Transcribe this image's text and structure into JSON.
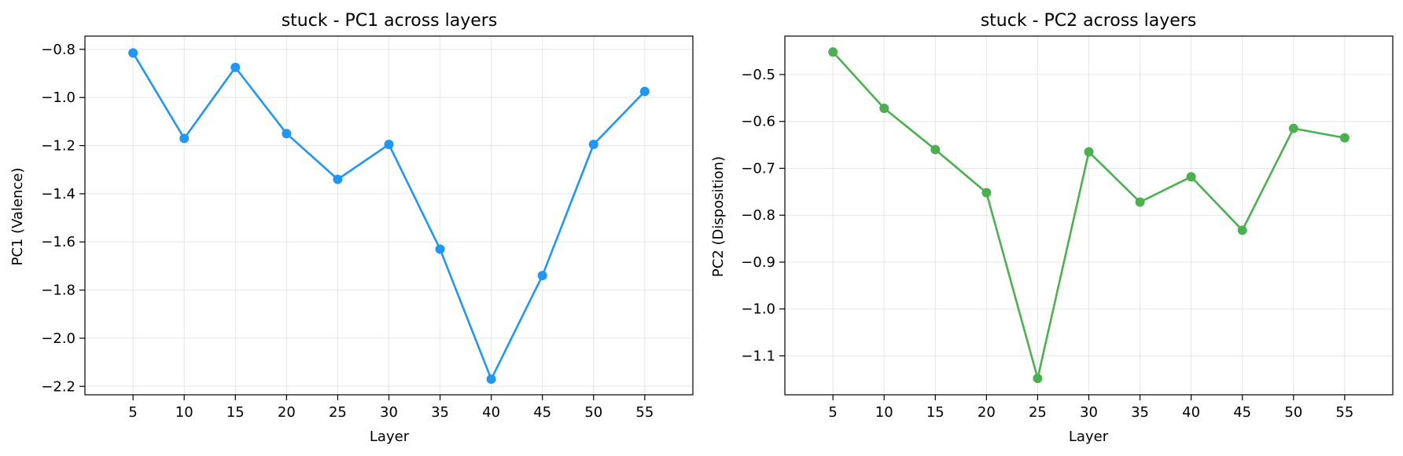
{
  "chart_data": [
    {
      "type": "line",
      "title": "stuck - PC1 across layers",
      "xlabel": "Layer",
      "ylabel": "PC1 (Valence)",
      "x": [
        5,
        10,
        15,
        20,
        25,
        30,
        35,
        40,
        45,
        50,
        55
      ],
      "xticks": [
        "5",
        "10",
        "15",
        "20",
        "25",
        "30",
        "35",
        "40",
        "45",
        "50",
        "55"
      ],
      "yticks": [
        -0.8,
        -1.0,
        -1.2,
        -1.4,
        -1.6,
        -1.8,
        -2.0,
        -2.2
      ],
      "ytick_labels": [
        "−0.8",
        "−1.0",
        "−1.2",
        "−1.4",
        "−1.6",
        "−1.8",
        "−2.0",
        "−2.2"
      ],
      "xlim": [
        0.3,
        59.7
      ],
      "ylim": [
        -2.235,
        -0.745
      ],
      "grid": true,
      "color": "#2196F3",
      "series": [
        {
          "values": [
            -0.815,
            -1.17,
            -0.875,
            -1.15,
            -1.34,
            -1.195,
            -1.63,
            -2.17,
            -1.74,
            -1.195,
            -0.975
          ]
        }
      ]
    },
    {
      "type": "line",
      "title": "stuck - PC2 across layers",
      "xlabel": "Layer",
      "ylabel": "PC2 (Disposition)",
      "x": [
        5,
        10,
        15,
        20,
        25,
        30,
        35,
        40,
        45,
        50,
        55
      ],
      "xticks": [
        "5",
        "10",
        "15",
        "20",
        "25",
        "30",
        "35",
        "40",
        "45",
        "50",
        "55"
      ],
      "yticks": [
        -0.5,
        -0.6,
        -0.7,
        -0.8,
        -0.9,
        -1.0,
        -1.1
      ],
      "ytick_labels": [
        "−0.5",
        "−0.6",
        "−0.7",
        "−0.8",
        "−0.9",
        "−1.0",
        "−1.1"
      ],
      "xlim": [
        0.3,
        59.7
      ],
      "ylim": [
        -1.183,
        -0.418
      ],
      "grid": true,
      "color": "#4CAF50",
      "series": [
        {
          "values": [
            -0.452,
            -0.572,
            -0.66,
            -0.752,
            -1.148,
            -0.665,
            -0.772,
            -0.718,
            -0.832,
            -0.615,
            -0.635
          ]
        }
      ]
    }
  ]
}
